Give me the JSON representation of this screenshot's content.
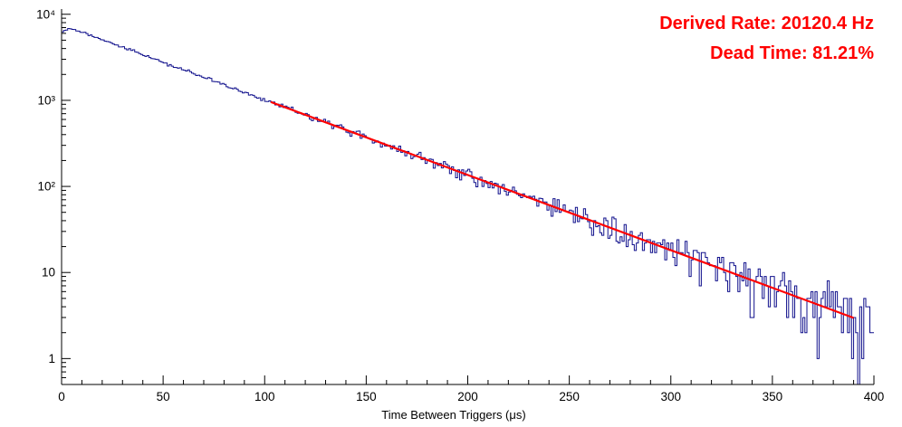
{
  "page": {
    "background": "#ffffff"
  },
  "chart_data": {
    "type": "histogram",
    "title": "",
    "xlabel": "Time Between Triggers (μs)",
    "ylabel": "",
    "x_range": [
      0,
      400
    ],
    "bin_width_us": 1,
    "y_scale": "log",
    "y_range": [
      0.5,
      11500
    ],
    "x_tick_step_major": 50,
    "x_tick_step_minor": 10,
    "x_tick_labels": [
      "0",
      "50",
      "100",
      "150",
      "200",
      "250",
      "300",
      "350",
      "400"
    ],
    "y_tick_values": [
      1,
      10,
      100,
      1000,
      10000
    ],
    "y_tick_labels": [
      "1",
      "10",
      "10²",
      "10³",
      "10⁴"
    ],
    "grid": false,
    "legend": "none",
    "histogram_model": {
      "description": "exponential decay of time-between-triggers, counts = amplitude * exp(-decay_per_us * t) with Poisson fluctuations; short-interval suppression near t=0",
      "amplitude": 7600,
      "decay_per_us": 0.0201204,
      "start_suppression_factor": 0.22,
      "start_suppression_tau_us": 2,
      "noise": "poisson",
      "seed": 20120
    },
    "fit_line": {
      "x_start_us": 103,
      "x_end_us": 390,
      "amplitude": 7600,
      "decay_per_us": 0.0201204
    },
    "reference_points": [
      {
        "t_us": 0,
        "counts": 6000
      },
      {
        "t_us": 100,
        "counts": 1000
      },
      {
        "t_us": 215,
        "counts": 100
      },
      {
        "t_us": 330,
        "counts": 10
      },
      {
        "t_us": 390,
        "counts": 3
      }
    ],
    "colors": {
      "histogram_line": "#10108c",
      "fit_line": "#ff0000",
      "axis": "#000000",
      "annotation": "#ff0000"
    },
    "annotations": [
      {
        "label": "derived-rate",
        "text": "Derived Rate: 20120.4 Hz"
      },
      {
        "label": "dead-time",
        "text": "Dead Time: 81.21%"
      }
    ]
  }
}
